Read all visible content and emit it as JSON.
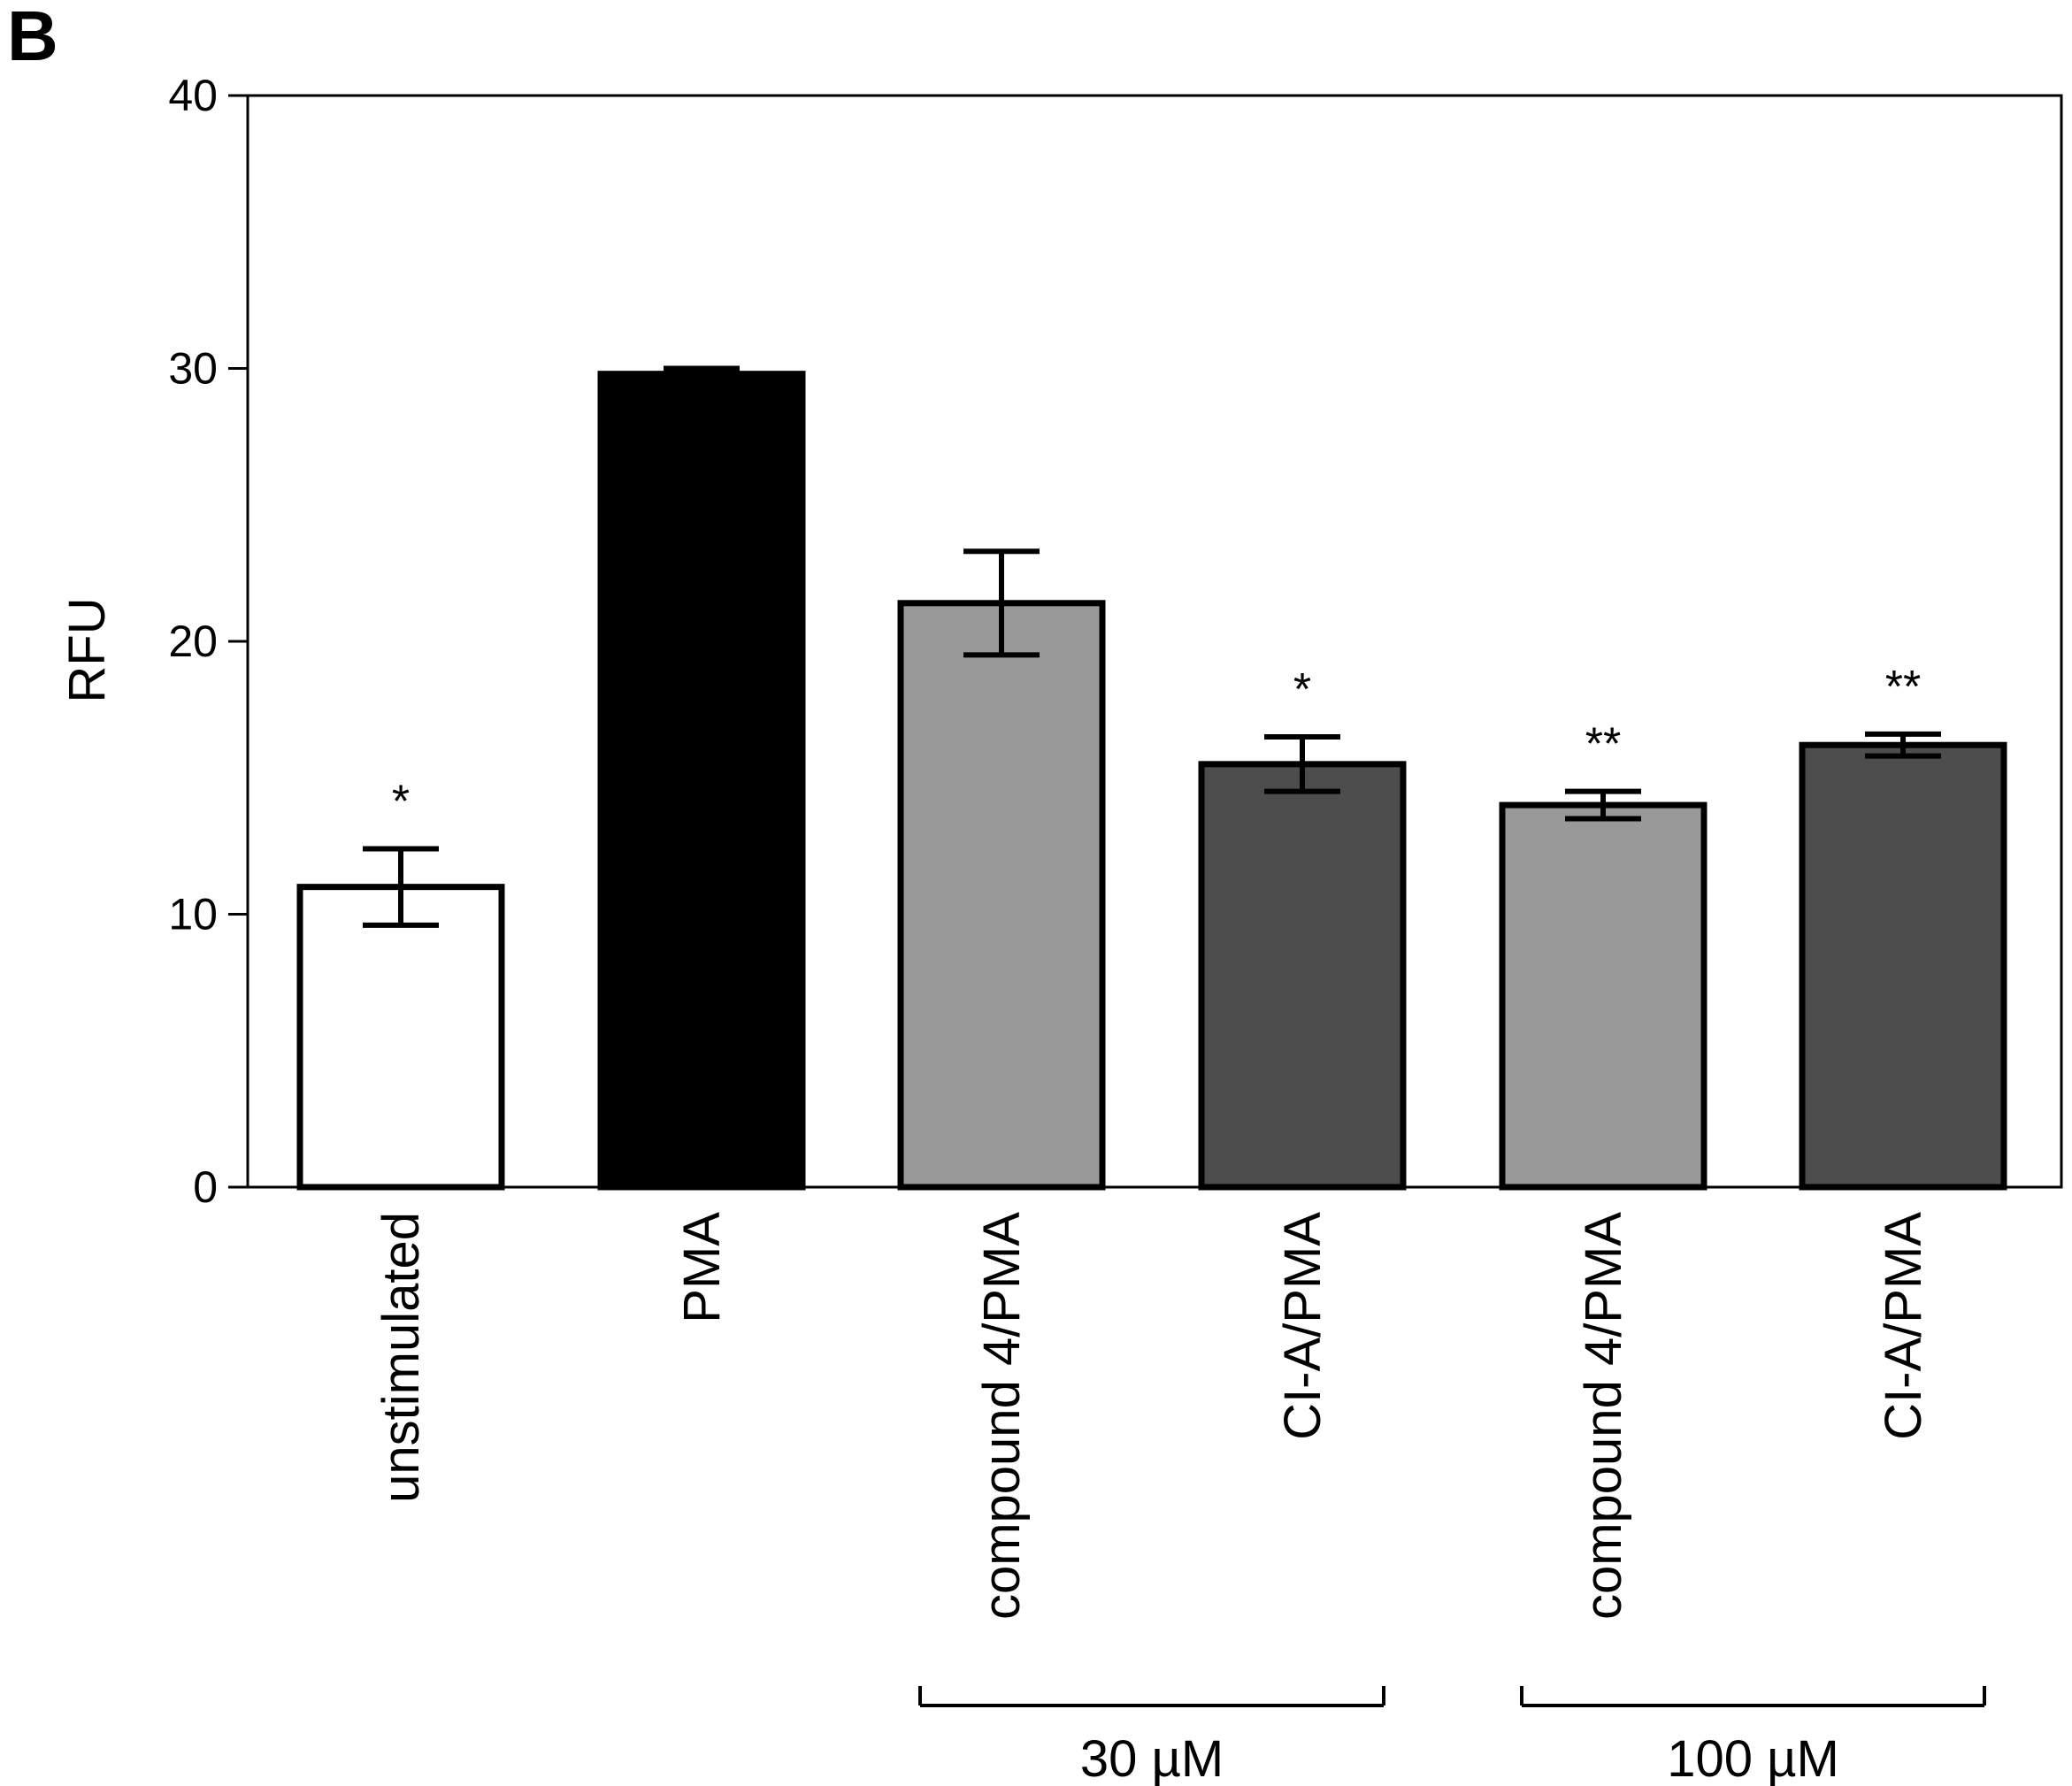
{
  "panel_label": "B",
  "chart_data": {
    "type": "bar",
    "title": "",
    "xlabel": "",
    "ylabel": "RFU",
    "ylim": [
      0,
      40
    ],
    "yticks": [
      0,
      10,
      20,
      30,
      40
    ],
    "grid": false,
    "categories": [
      "unstimulated",
      "PMA",
      "compound 4/PMA",
      "CI-A/PMA",
      "compound 4/PMA",
      "CI-A/PMA"
    ],
    "values": [
      11.0,
      29.8,
      21.4,
      15.5,
      14.0,
      16.2
    ],
    "errors": [
      1.4,
      0.2,
      1.9,
      1.0,
      0.5,
      0.4
    ],
    "bar_colors": [
      "#ffffff",
      "#000000",
      "#999999",
      "#4d4d4d",
      "#999999",
      "#4d4d4d"
    ],
    "significance": [
      "*",
      "",
      "",
      "*",
      "**",
      "**"
    ],
    "groups": [
      {
        "label": "30 µM",
        "from_index": 2,
        "to_index": 3
      },
      {
        "label": "100 µM",
        "from_index": 4,
        "to_index": 5
      }
    ]
  }
}
